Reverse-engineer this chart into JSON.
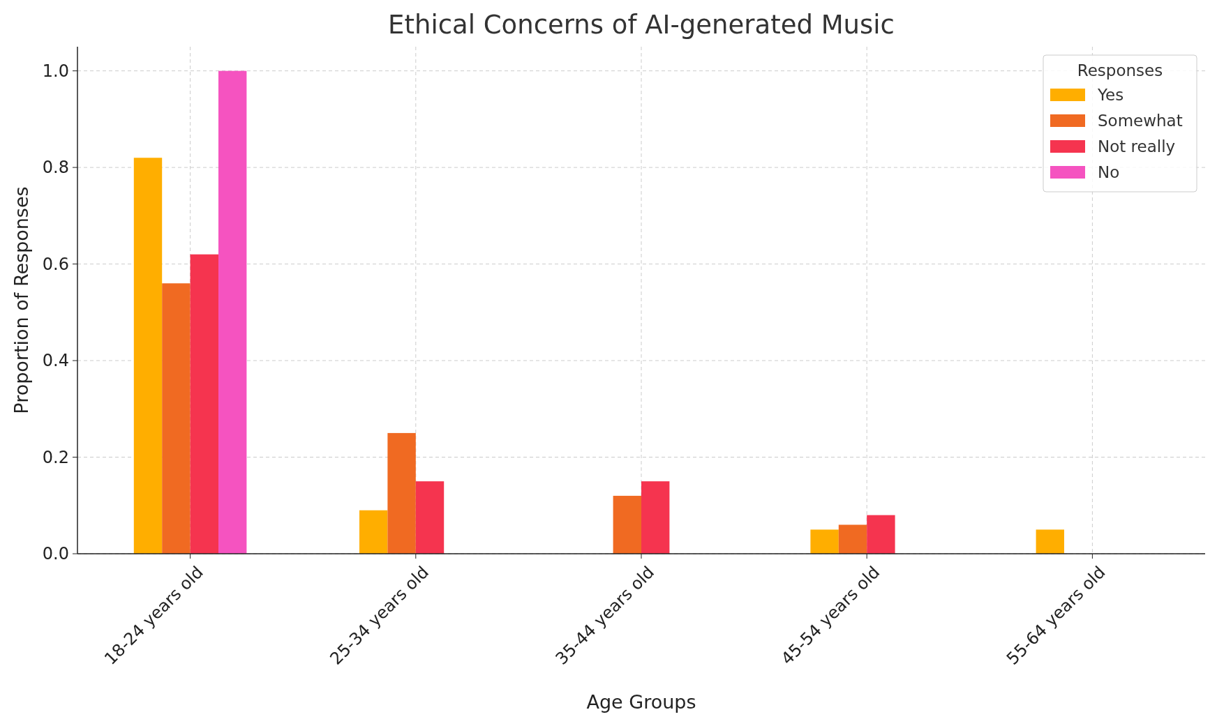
{
  "chart_data": {
    "type": "bar",
    "title": "Ethical Concerns of AI-generated Music",
    "xlabel": "Age Groups",
    "ylabel": "Proportion of Responses",
    "legend_title": "Responses",
    "categories": [
      "18-24 years old",
      "25-34 years old",
      "35-44 years old",
      "45-54 years old",
      "55-64 years old"
    ],
    "series": [
      {
        "name": "Yes",
        "color": "#ffae00",
        "values": [
          0.82,
          0.09,
          0,
          0.05,
          0.05
        ]
      },
      {
        "name": "Somewhat",
        "color": "#f06a22",
        "values": [
          0.56,
          0.25,
          0.12,
          0.06,
          0
        ]
      },
      {
        "name": "Not really",
        "color": "#f5344f",
        "values": [
          0.62,
          0.15,
          0.15,
          0.08,
          0
        ]
      },
      {
        "name": "No",
        "color": "#f553c0",
        "values": [
          1.0,
          0,
          0,
          0,
          0
        ]
      }
    ],
    "ylim": [
      0,
      1.05
    ],
    "yticks": [
      {
        "value": 0,
        "label": "0.0"
      },
      {
        "value": 0.2,
        "label": "0.2"
      },
      {
        "value": 0.4,
        "label": "0.4"
      },
      {
        "value": 0.6,
        "label": "0.6"
      },
      {
        "value": 0.8,
        "label": "0.8"
      },
      {
        "value": 1,
        "label": "1.0"
      }
    ],
    "grid": true,
    "legend": "top right"
  }
}
